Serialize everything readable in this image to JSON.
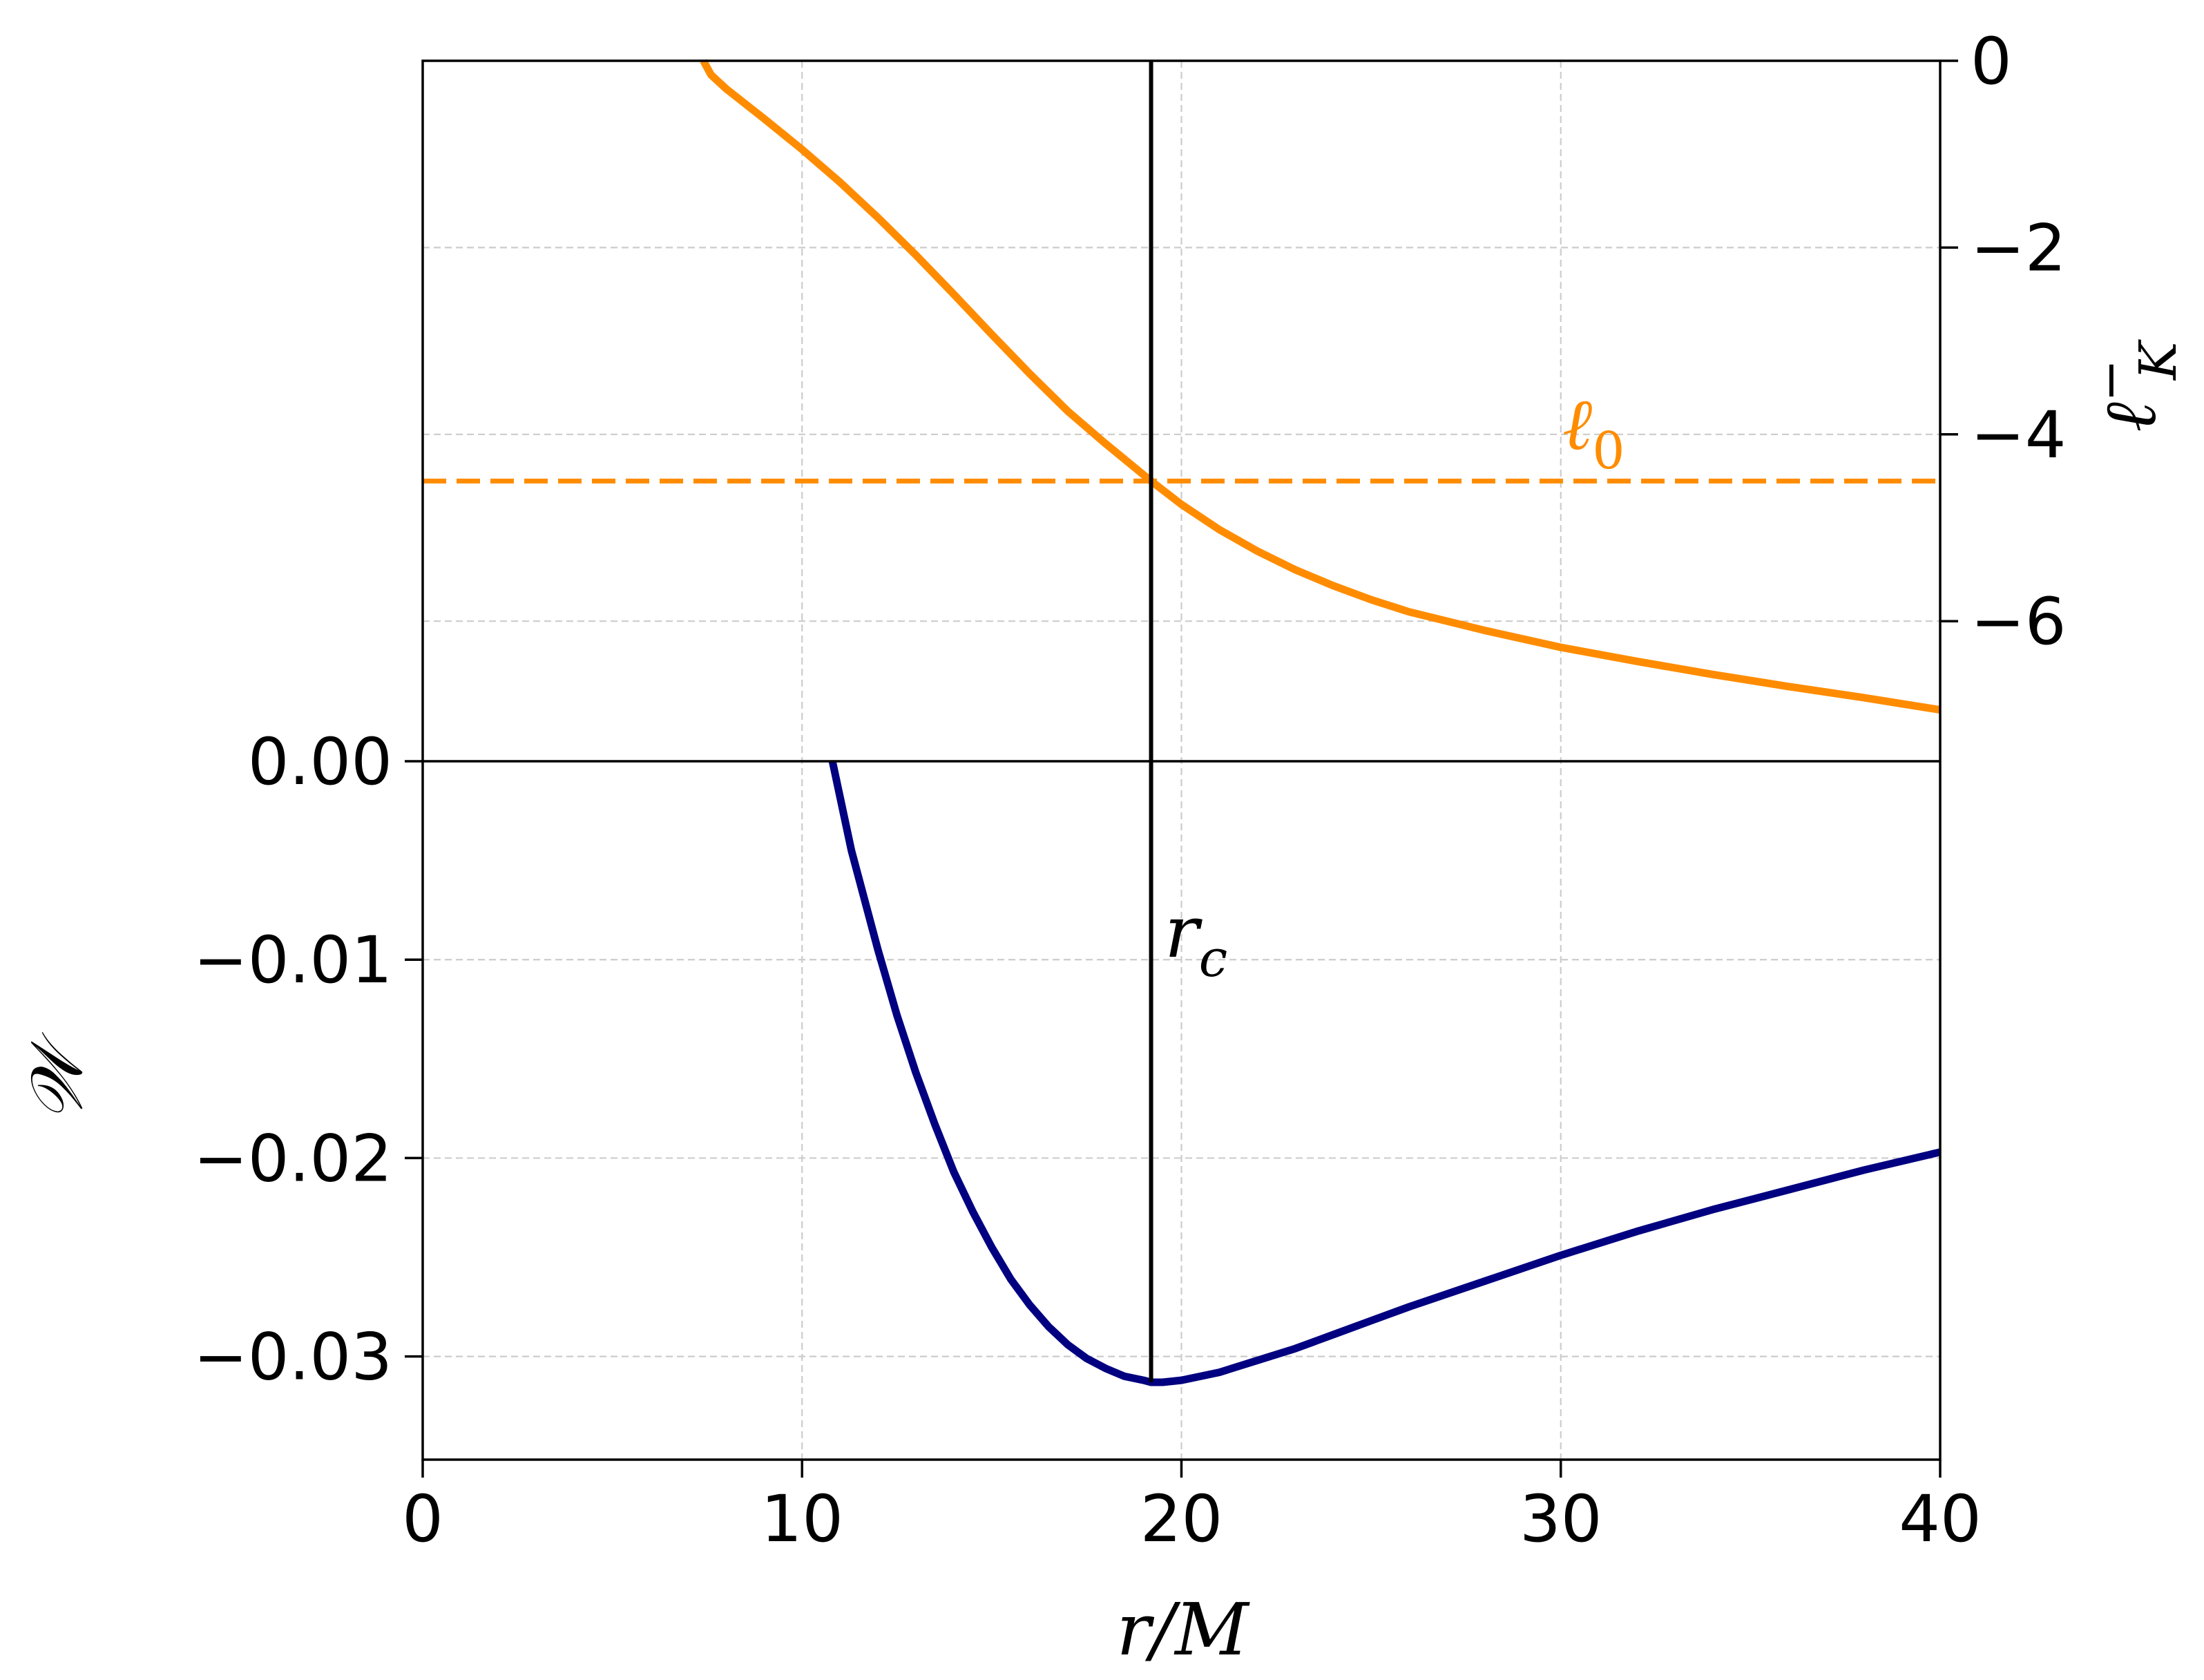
{
  "chart_data": {
    "type": "line",
    "x_axis": {
      "label_main": "r",
      "label_rest": "/M",
      "range": [
        0,
        40
      ],
      "ticks": [
        0,
        10,
        20,
        30,
        40
      ],
      "tick_labels": [
        "0",
        "10",
        "20",
        "30",
        "40"
      ]
    },
    "left_axis": {
      "label": "𝒲",
      "range": [
        -0.0352,
        0.0
      ],
      "ticks": [
        0.0,
        -0.01,
        -0.02,
        -0.03
      ],
      "tick_labels": [
        "0.00",
        "−0.01",
        "−0.02",
        "−0.03"
      ]
    },
    "right_axis": {
      "label_main": "ℓ",
      "label_sup": "−",
      "label_sub": "K",
      "range": [
        -7.5,
        0
      ],
      "ticks": [
        0,
        -2,
        -4,
        -6
      ],
      "tick_labels": [
        "0",
        "−2",
        "−4",
        "−6"
      ]
    },
    "grid": true,
    "series": [
      {
        "id": "W",
        "axis": "left",
        "color": "#000080",
        "style": "solid",
        "x": [
          10.8,
          11.3,
          12.0,
          12.5,
          13.0,
          13.5,
          14.0,
          14.5,
          15.0,
          15.5,
          16.0,
          16.5,
          17.0,
          17.5,
          18.0,
          18.5,
          19.0,
          19.2,
          19.5,
          20.0,
          21.0,
          22.0,
          23.0,
          24.0,
          25.0,
          26.0,
          28.0,
          30.0,
          32.0,
          34.0,
          36.0,
          38.0,
          40.0
        ],
        "y": [
          0.0,
          -0.0045,
          -0.0095,
          -0.0128,
          -0.0157,
          -0.0183,
          -0.0207,
          -0.0227,
          -0.0245,
          -0.0261,
          -0.0274,
          -0.0285,
          -0.0294,
          -0.0301,
          -0.0306,
          -0.031,
          -0.0312,
          -0.0313,
          -0.0313,
          -0.0312,
          -0.0308,
          -0.0302,
          -0.0296,
          -0.0289,
          -0.0282,
          -0.0275,
          -0.0262,
          -0.0249,
          -0.0237,
          -0.0226,
          -0.0216,
          -0.0206,
          -0.0197
        ]
      },
      {
        "id": "lK",
        "axis": "right",
        "color": "#ff8c00",
        "style": "solid",
        "x": [
          7.4,
          7.6,
          8.0,
          9.0,
          10.0,
          11.0,
          12.0,
          13.0,
          14.0,
          15.0,
          16.0,
          17.0,
          18.0,
          19.2,
          20.0,
          21.0,
          22.0,
          23.0,
          24.0,
          25.0,
          26.0,
          28.0,
          30.0,
          32.0,
          34.0,
          36.0,
          38.0,
          40.0
        ],
        "y": [
          0.0,
          -0.15,
          -0.3,
          -0.62,
          -0.95,
          -1.3,
          -1.68,
          -2.08,
          -2.5,
          -2.93,
          -3.35,
          -3.75,
          -4.1,
          -4.5,
          -4.75,
          -5.02,
          -5.25,
          -5.45,
          -5.62,
          -5.77,
          -5.9,
          -6.1,
          -6.28,
          -6.43,
          -6.57,
          -6.7,
          -6.82,
          -6.95
        ]
      },
      {
        "id": "l0",
        "axis": "right",
        "color": "#ff8c00",
        "style": "dashed",
        "x": [
          0,
          40
        ],
        "y": [
          -4.5,
          -4.5
        ]
      }
    ],
    "vertical_line": {
      "x": 19.2,
      "color": "#000000"
    },
    "annotations": {
      "r_c": {
        "main": "r",
        "sub": "c"
      },
      "l_0": {
        "main": "ℓ",
        "sub": "0"
      }
    }
  }
}
